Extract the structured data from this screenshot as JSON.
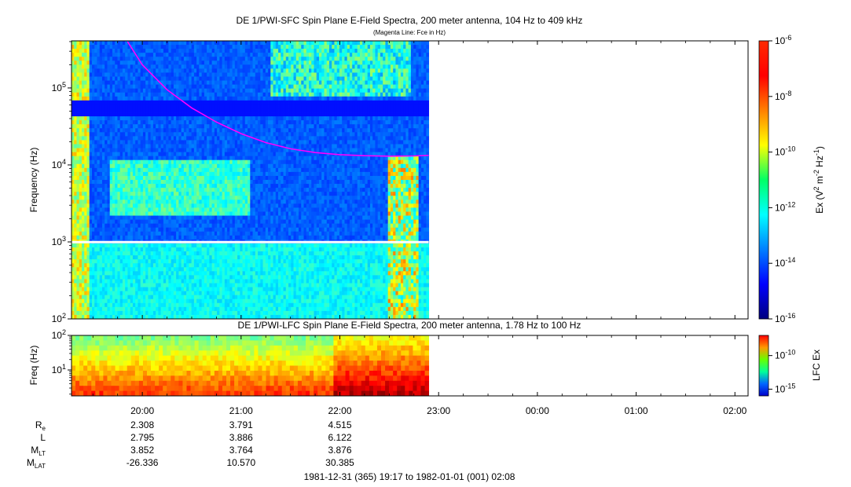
{
  "chart_data": [
    {
      "type": "heatmap",
      "title": "DE 1/PWI-SFC  Spin Plane E-Field Spectra, 200 meter antenna, 104 Hz to 409 kHz",
      "subtitle": "(Magenta Line: Fce in Hz)",
      "ylabel": "Frequency (Hz)",
      "yscale": "log",
      "ylim": [
        100,
        409000
      ],
      "y_ticks": [
        {
          "value": 100,
          "base": "10",
          "exp": "2"
        },
        {
          "value": 1000,
          "base": "10",
          "exp": "3"
        },
        {
          "value": 10000,
          "base": "10",
          "exp": "4"
        },
        {
          "value": 100000,
          "base": "10",
          "exp": "5"
        }
      ],
      "data_gap_hz": [
        960,
        1030
      ],
      "colorbar": {
        "label_parts": [
          "Ex (V",
          "2",
          " m",
          "-2",
          " Hz",
          "-1",
          ")"
        ],
        "scale": "log",
        "range": [
          1e-16,
          1e-06
        ],
        "ticks": [
          {
            "value": 1e-16,
            "base": "10",
            "exp": "-16"
          },
          {
            "value": 1e-14,
            "base": "10",
            "exp": "-14"
          },
          {
            "value": 1e-12,
            "base": "10",
            "exp": "-12"
          },
          {
            "value": 1e-10,
            "base": "10",
            "exp": "-10"
          },
          {
            "value": 1e-08,
            "base": "10",
            "exp": "-8"
          },
          {
            "value": 1e-06,
            "base": "10",
            "exp": "-6"
          }
        ]
      },
      "fce_line": {
        "color": "#ff00ff",
        "t_hours": [
          19.85,
          20.0,
          20.25,
          20.5,
          20.75,
          21.0,
          21.25,
          21.5,
          21.75,
          22.0,
          22.25,
          22.5,
          22.75,
          22.9
        ],
        "freq_hz": [
          400000,
          200000,
          95000,
          55000,
          36000,
          25500,
          19500,
          16200,
          14500,
          13600,
          13200,
          13000,
          13100,
          13300
        ]
      },
      "data_end_hours": 22.9
    },
    {
      "type": "heatmap",
      "title": "DE 1/PWI-LFC  Spin Plane E-Field Spectra, 200 meter antenna, 1.78 Hz to 100 Hz",
      "ylabel": "Freq (Hz)",
      "yscale": "log",
      "ylim": [
        1.78,
        100
      ],
      "y_ticks": [
        {
          "value": 10,
          "base": "10",
          "exp": "1"
        },
        {
          "value": 100,
          "base": "10",
          "exp": "2"
        }
      ],
      "colorbar": {
        "label": "LFC Ex",
        "scale": "log",
        "range": [
          1e-16,
          1e-07
        ],
        "ticks": [
          {
            "value": 1e-15,
            "base": "10",
            "exp": "-15"
          },
          {
            "value": 1e-10,
            "base": "10",
            "exp": "-10"
          }
        ]
      },
      "data_end_hours": 22.9
    }
  ],
  "time_axis": {
    "xlim_hours": [
      19.283,
      26.133
    ],
    "ticks": [
      {
        "value": 20,
        "label": "20:00"
      },
      {
        "value": 21,
        "label": "21:00"
      },
      {
        "value": 22,
        "label": "22:00"
      },
      {
        "value": 23,
        "label": "23:00"
      },
      {
        "value": 24,
        "label": "00:00"
      },
      {
        "value": 25,
        "label": "01:00"
      },
      {
        "value": 26,
        "label": "02:00"
      }
    ],
    "range_label": "1981-12-31 (365) 19:17 to 1982-01-01 (001) 02:08"
  },
  "ephemeris": {
    "rows": [
      {
        "key": "re",
        "main": "R",
        "sub": "e",
        "values": [
          "2.308",
          "3.791",
          "4.515"
        ]
      },
      {
        "key": "l",
        "main": "L",
        "sub": "",
        "values": [
          "2.795",
          "3.886",
          "6.122"
        ]
      },
      {
        "key": "mlt",
        "main": "M",
        "sub": "LT",
        "values": [
          "3.852",
          "3.764",
          "3.876"
        ]
      },
      {
        "key": "mlat",
        "main": "M",
        "sub": "LAT",
        "values": [
          "-26.336",
          "10.570",
          "30.385"
        ]
      }
    ]
  }
}
